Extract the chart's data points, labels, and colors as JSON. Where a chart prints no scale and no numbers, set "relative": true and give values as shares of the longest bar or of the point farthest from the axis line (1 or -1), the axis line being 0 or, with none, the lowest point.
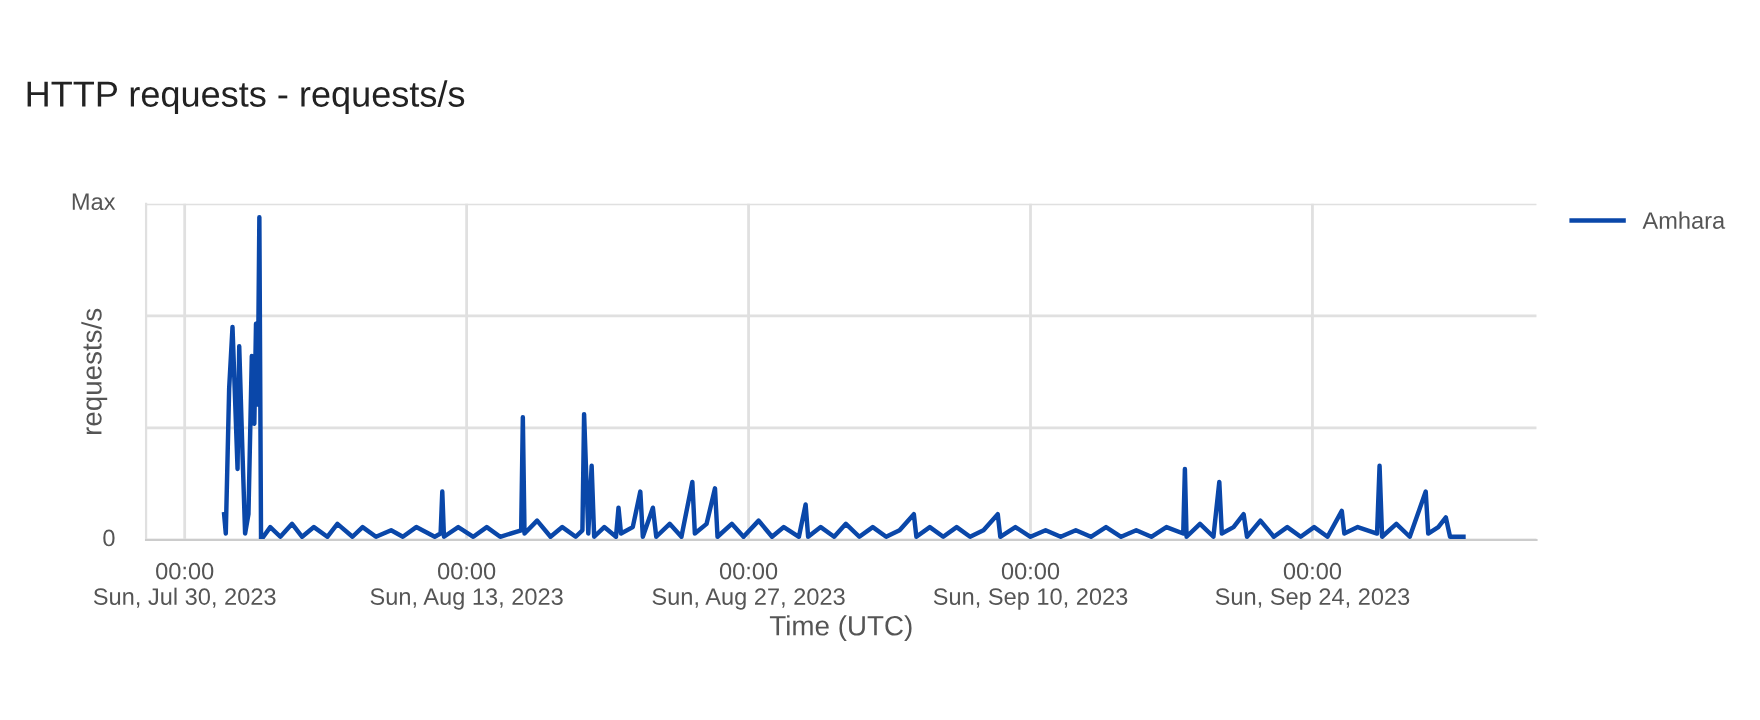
{
  "chart_data": {
    "type": "line",
    "title": "HTTP requests - requests/s",
    "xlabel": "Time (UTC)",
    "ylabel": "requests/s",
    "xlim": [
      "2023-07-28T02:00",
      "2023-10-05T03:00"
    ],
    "xticks": [
      {
        "value": "2023-07-30",
        "label": "00:00\nSun, Jul 30, 2023"
      },
      {
        "value": "2023-08-13",
        "label": "00:00\nSun, Aug 13, 2023"
      },
      {
        "value": "2023-08-27",
        "label": "00:00\nSun, Aug 27, 2023"
      },
      {
        "value": "2023-09-10",
        "label": "00:00\nSun, Sep 10, 2023"
      },
      {
        "value": "2023-09-24",
        "label": "00:00\nSun, Sep 24, 2023"
      }
    ],
    "relative": true,
    "annotations": [
      "Max",
      "0"
    ],
    "grid": true,
    "legend": "right",
    "marker": "none",
    "line_style": "solid",
    "series": [
      {
        "name": "Amhara",
        "color": "#0a47a9",
        "x": [
          "2023-07-31T23:00",
          "2023-08-01T01:00",
          "2023-08-01T05:00",
          "2023-08-01T09:00",
          "2023-08-01T15:00",
          "2023-08-01T17:00",
          "2023-08-01T21:00",
          "2023-08-02T00:00",
          "2023-08-02T04:00",
          "2023-08-02T08:00",
          "2023-08-02T11:00",
          "2023-08-02T13:00",
          "2023-08-02T15:00",
          "2023-08-02T17:00",
          "2023-08-02T19:00",
          "2023-08-03T06:00",
          "2023-08-03T18:00",
          "2023-08-04T08:00",
          "2023-08-04T20:00",
          "2023-08-05T10:00",
          "2023-08-06T02:00",
          "2023-08-06T14:00",
          "2023-08-07T08:00",
          "2023-08-07T20:00",
          "2023-08-08T12:00",
          "2023-08-09T06:00",
          "2023-08-09T20:00",
          "2023-08-10T12:00",
          "2023-08-11T10:00",
          "2023-08-11T17:00",
          "2023-08-11T19:00",
          "2023-08-11T21:00",
          "2023-08-12T14:00",
          "2023-08-13T08:00",
          "2023-08-14T00:00",
          "2023-08-14T16:00",
          "2023-08-15T17:00",
          "2023-08-15T19:00",
          "2023-08-15T21:00",
          "2023-08-16T12:00",
          "2023-08-17T04:00",
          "2023-08-17T18:00",
          "2023-08-18T10:00",
          "2023-08-18T18:00",
          "2023-08-18T20:00",
          "2023-08-19T01:00",
          "2023-08-19T05:00",
          "2023-08-19T08:00",
          "2023-08-19T20:00",
          "2023-08-20T10:00",
          "2023-08-20T13:00",
          "2023-08-20T16:00",
          "2023-08-21T06:00",
          "2023-08-21T15:00",
          "2023-08-21T18:00",
          "2023-08-22T06:00",
          "2023-08-22T10:00",
          "2023-08-23T02:00",
          "2023-08-23T16:00",
          "2023-08-24T05:00",
          "2023-08-24T08:00",
          "2023-08-24T22:00",
          "2023-08-25T08:00",
          "2023-08-25T11:00",
          "2023-08-26T04:00",
          "2023-08-26T18:00",
          "2023-08-27T12:00",
          "2023-08-28T04:00",
          "2023-08-28T18:00",
          "2023-08-29T12:00",
          "2023-08-29T20:00",
          "2023-08-29T23:00",
          "2023-08-30T14:00",
          "2023-08-31T06:00",
          "2023-08-31T20:00",
          "2023-09-01T12:00",
          "2023-09-02T04:00",
          "2023-09-02T20:00",
          "2023-09-03T12:00",
          "2023-09-04T05:00",
          "2023-09-04T08:00",
          "2023-09-05T00:00",
          "2023-09-05T16:00",
          "2023-09-06T08:00",
          "2023-09-07T00:00",
          "2023-09-07T16:00",
          "2023-09-08T09:00",
          "2023-09-08T12:00",
          "2023-09-09T06:00",
          "2023-09-10T00:00",
          "2023-09-10T18:00",
          "2023-09-11T12:00",
          "2023-09-12T06:00",
          "2023-09-13T00:00",
          "2023-09-13T18:00",
          "2023-09-14T12:00",
          "2023-09-15T06:00",
          "2023-09-16T00:00",
          "2023-09-16T18:00",
          "2023-09-17T14:00",
          "2023-09-17T16:00",
          "2023-09-17T18:00",
          "2023-09-18T10:00",
          "2023-09-19T02:00",
          "2023-09-19T09:00",
          "2023-09-19T12:00",
          "2023-09-20T02:00",
          "2023-09-20T14:00",
          "2023-09-20T18:00",
          "2023-09-21T10:00",
          "2023-09-22T02:00",
          "2023-09-22T18:00",
          "2023-09-23T10:00",
          "2023-09-24T02:00",
          "2023-09-24T18:00",
          "2023-09-25T11:00",
          "2023-09-25T14:00",
          "2023-09-26T06:00",
          "2023-09-27T05:00",
          "2023-09-27T08:00",
          "2023-09-27T11:00",
          "2023-09-28T04:00",
          "2023-09-28T20:00",
          "2023-09-29T15:00",
          "2023-09-29T18:00",
          "2023-09-30T06:00",
          "2023-09-30T15:00",
          "2023-09-30T20:00",
          "2023-10-01T12:00"
        ],
        "values": [
          0.08,
          0.02,
          0.47,
          0.66,
          0.22,
          0.6,
          0.26,
          0.02,
          0.08,
          0.57,
          0.36,
          0.67,
          0.42,
          1,
          0.0,
          0.04,
          0.01,
          0.05,
          0.01,
          0.04,
          0.01,
          0.05,
          0.01,
          0.04,
          0.01,
          0.03,
          0.01,
          0.04,
          0.01,
          0.02,
          0.15,
          0.01,
          0.04,
          0.01,
          0.04,
          0.01,
          0.03,
          0.38,
          0.02,
          0.06,
          0.01,
          0.04,
          0.01,
          0.03,
          0.39,
          0.02,
          0.23,
          0.01,
          0.04,
          0.01,
          0.1,
          0.02,
          0.04,
          0.15,
          0.01,
          0.1,
          0.01,
          0.05,
          0.01,
          0.18,
          0.02,
          0.05,
          0.16,
          0.01,
          0.05,
          0.01,
          0.06,
          0.01,
          0.04,
          0.01,
          0.11,
          0.01,
          0.04,
          0.01,
          0.05,
          0.01,
          0.04,
          0.01,
          0.03,
          0.08,
          0.01,
          0.04,
          0.01,
          0.04,
          0.01,
          0.03,
          0.08,
          0.01,
          0.04,
          0.01,
          0.03,
          0.01,
          0.03,
          0.01,
          0.04,
          0.01,
          0.03,
          0.01,
          0.04,
          0.02,
          0.22,
          0.01,
          0.05,
          0.01,
          0.18,
          0.02,
          0.04,
          0.08,
          0.01,
          0.06,
          0.01,
          0.04,
          0.01,
          0.04,
          0.01,
          0.09,
          0.02,
          0.04,
          0.02,
          0.23,
          0.01,
          0.05,
          0.01,
          0.15,
          0.02,
          0.04,
          0.07,
          0.01,
          0.01
        ]
      }
    ]
  }
}
